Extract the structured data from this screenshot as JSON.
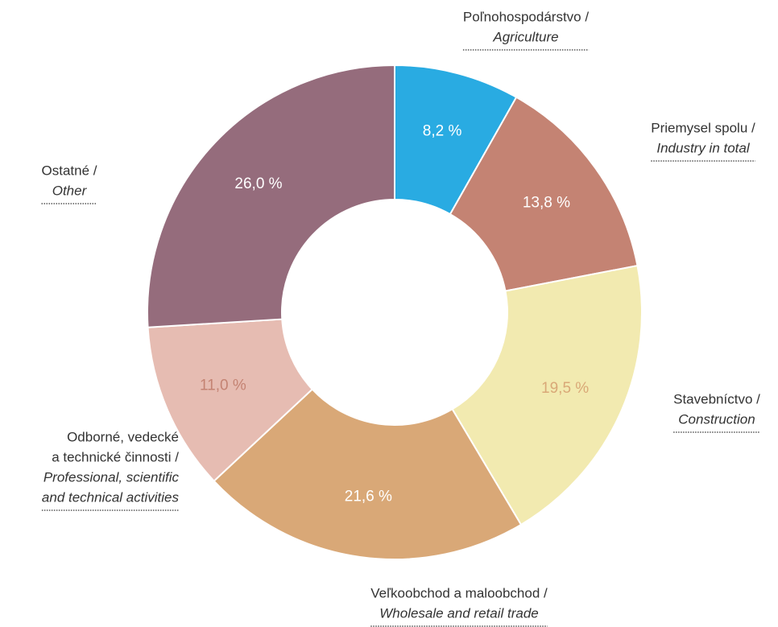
{
  "chart_data": {
    "type": "donut",
    "categories": [
      {
        "sk": [
          "Poľnohospodárstvo /"
        ],
        "en": [
          "Agriculture"
        ]
      },
      {
        "sk": [
          "Priemysel spolu /"
        ],
        "en": [
          "Industry in total"
        ]
      },
      {
        "sk": [
          "Stavebníctvo /"
        ],
        "en": [
          "Construction"
        ]
      },
      {
        "sk": [
          "Veľkoobchod a maloobchod /"
        ],
        "en": [
          "Wholesale and retail trade"
        ]
      },
      {
        "sk": [
          "Odborné, vedecké",
          "a technické činnosti /"
        ],
        "en": [
          "Professional, scientific",
          "and technical activities"
        ]
      },
      {
        "sk": [
          "Ostatné /"
        ],
        "en": [
          "Other"
        ]
      }
    ],
    "values": [
      8.2,
      13.8,
      19.5,
      21.6,
      11.0,
      26.0
    ],
    "value_labels": [
      "8,2 %",
      "13,8 %",
      "19,5 %",
      "21,6 %",
      "11,0 %",
      "26,0 %"
    ],
    "colors": [
      "#29abe2",
      "#c48373",
      "#f2eab0",
      "#d9a877",
      "#e6bcb2",
      "#956c7c"
    ],
    "label_colors": [
      "#ffffff",
      "#ffffff",
      "#d9a877",
      "#ffffff",
      "#c48373",
      "#ffffff"
    ]
  }
}
